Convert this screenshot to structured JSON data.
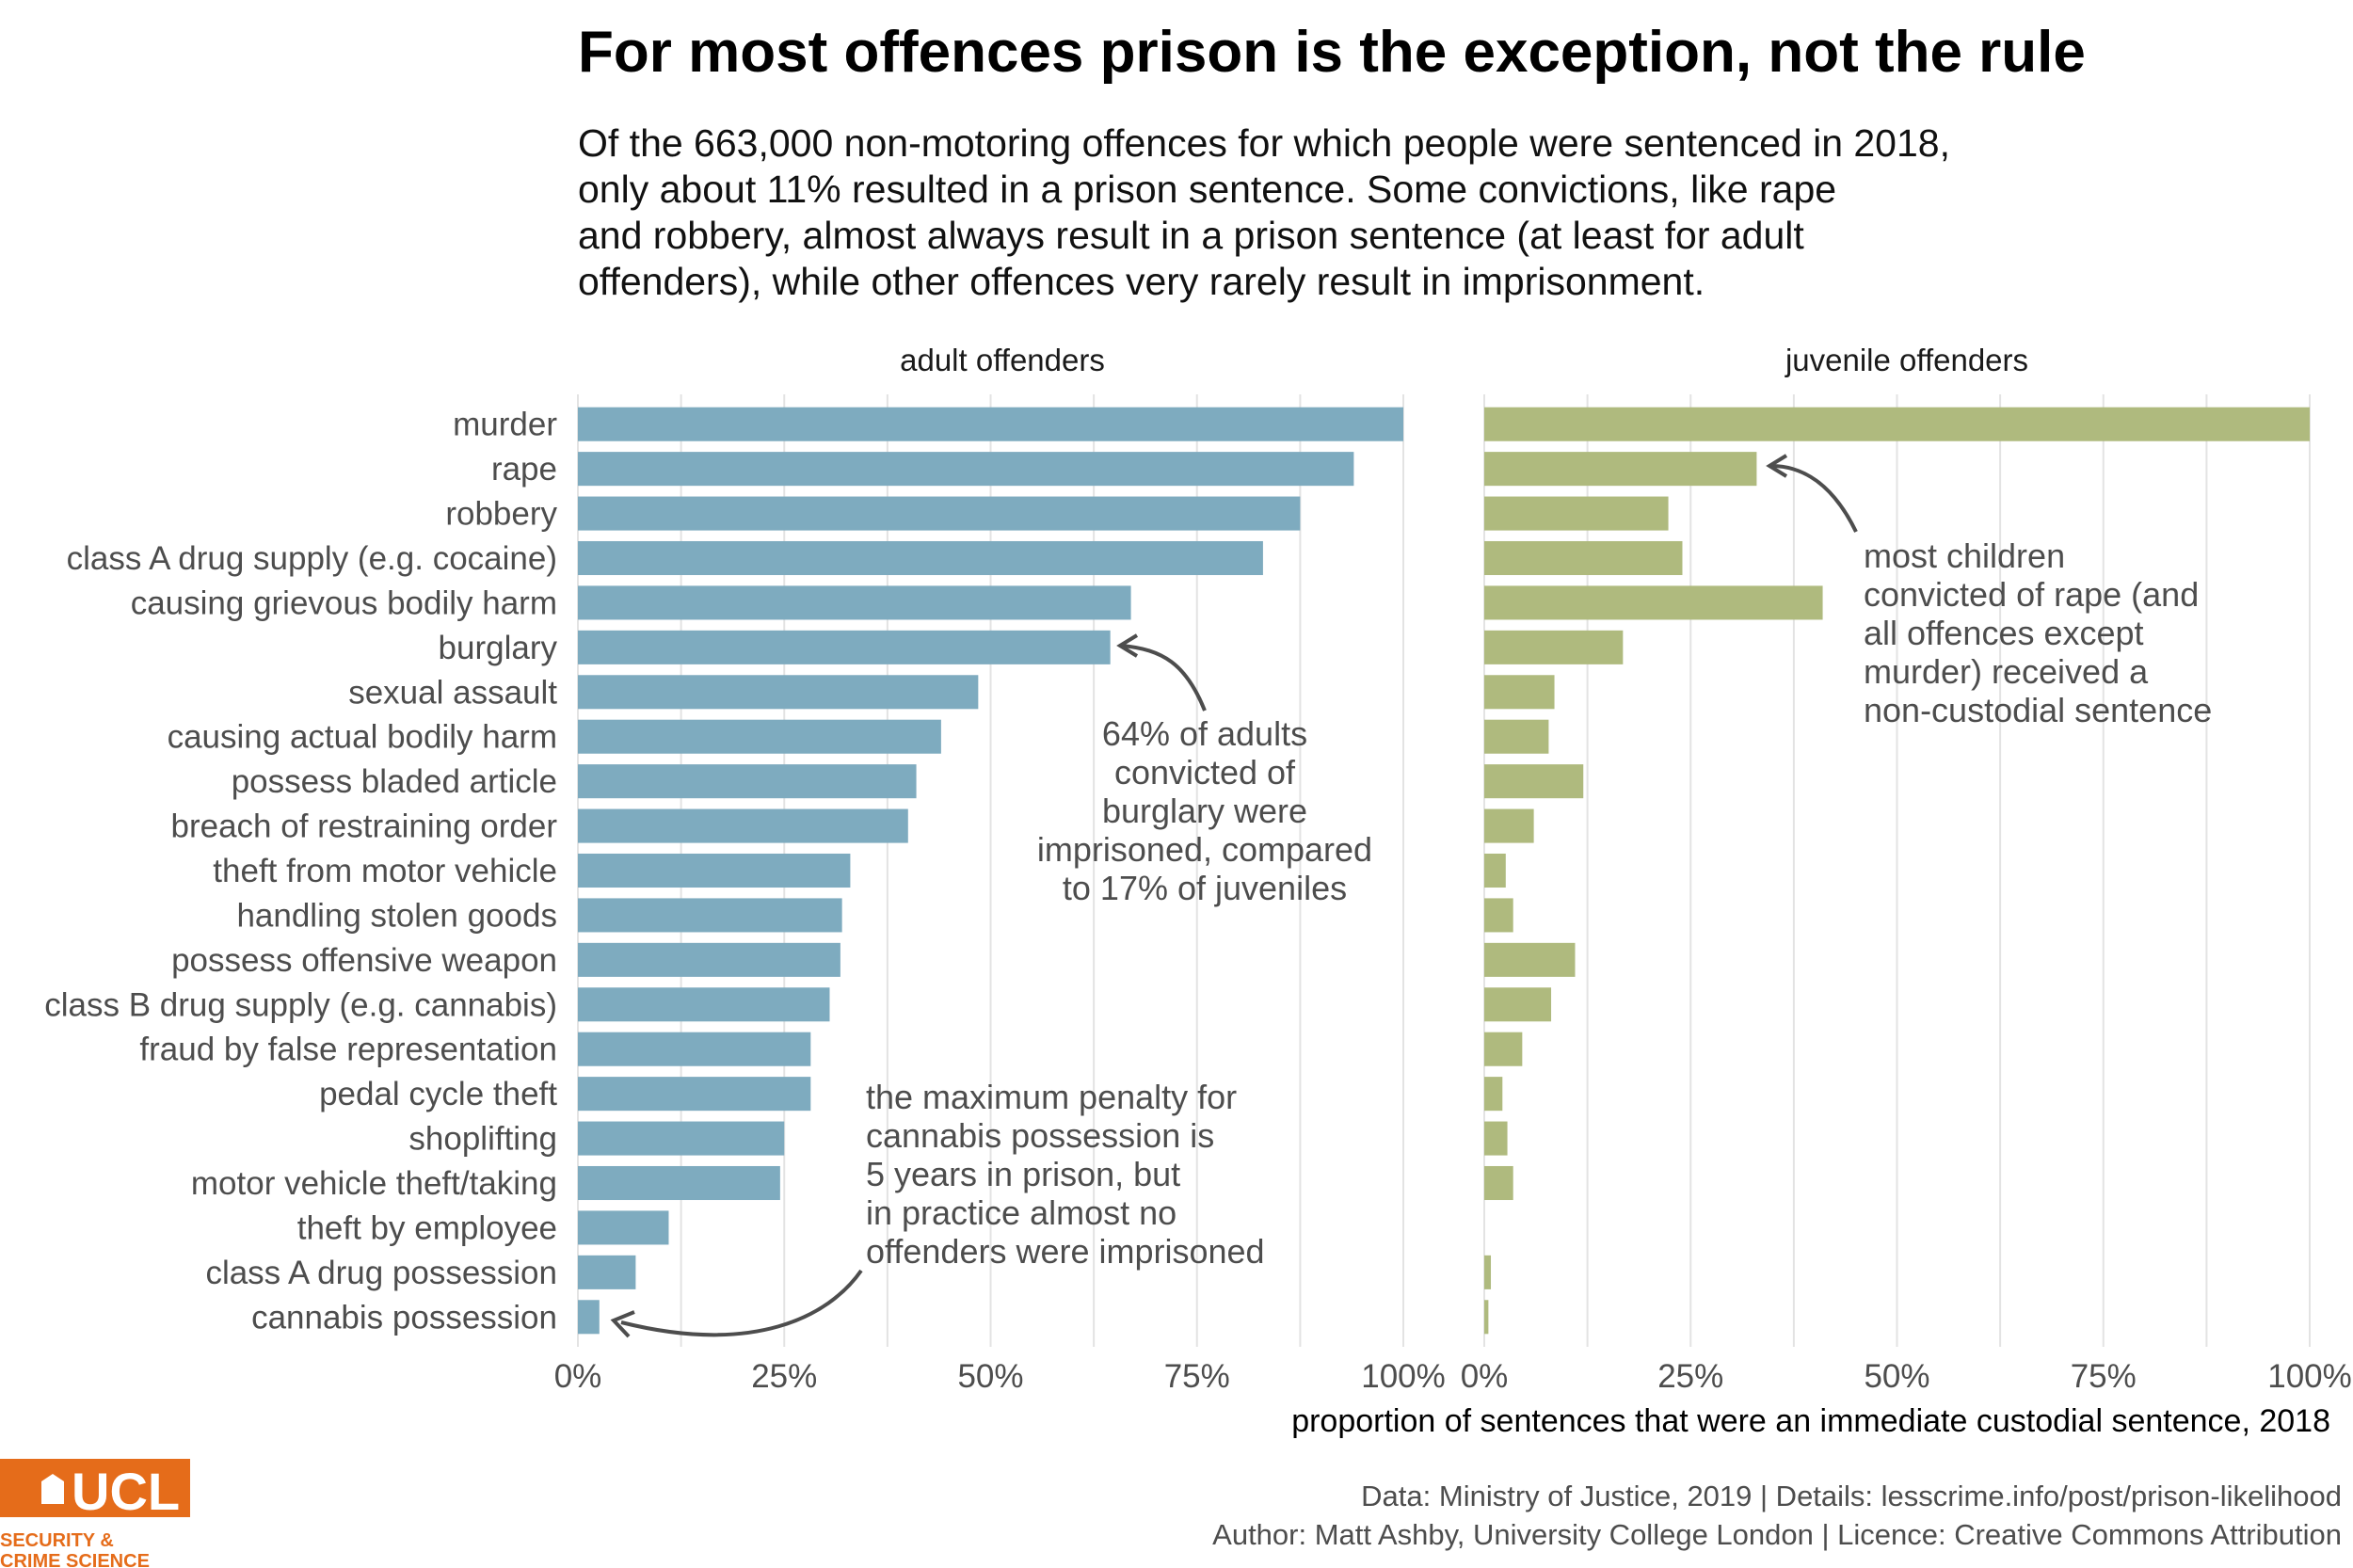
{
  "header": {
    "title": "For most offences prison is the exception, not the rule",
    "subtitle_lines": [
      "Of the 663,000 non-motoring offences for which people were sentenced in 2018,",
      "only about 11% resulted in a prison sentence. Some convictions, like rape",
      "and robbery, almost always result in a prison sentence (at least for adult",
      "offenders), while other offences very rarely result in imprisonment."
    ]
  },
  "chart_data": {
    "type": "bar",
    "orientation": "horizontal",
    "categories": [
      "murder",
      "rape",
      "robbery",
      "class A drug supply (e.g. cocaine)",
      "causing grievous bodily harm",
      "burglary",
      "sexual assault",
      "causing actual bodily harm",
      "possess bladed article",
      "breach of restraining order",
      "theft from motor vehicle",
      "handling stolen goods",
      "possess offensive weapon",
      "class B drug supply (e.g. cannabis)",
      "fraud by false representation",
      "pedal cycle theft",
      "shoplifting",
      "motor vehicle theft/taking",
      "theft by employee",
      "class A drug possession",
      "cannabis possession"
    ],
    "facets": [
      {
        "name": "adult offenders",
        "color": "#7eabbf",
        "values": [
          100,
          94,
          87.5,
          83,
          67,
          64.5,
          48.5,
          44,
          41,
          40,
          33,
          32,
          31.8,
          30.5,
          28.2,
          28.2,
          25,
          24.5,
          11,
          7,
          2.6
        ]
      },
      {
        "name": "juvenile offenders",
        "color": "#afba7e",
        "values": [
          100,
          33,
          22.3,
          24,
          41,
          16.8,
          8.5,
          7.8,
          12,
          6,
          2.6,
          3.5,
          11,
          8.1,
          4.6,
          2.2,
          2.8,
          3.5,
          null,
          0.8,
          0.5
        ]
      }
    ],
    "x_ticks": [
      "0%",
      "25%",
      "50%",
      "75%",
      "100%"
    ],
    "xlim": [
      0,
      100
    ],
    "xlabel": "proportion of sentences that were an immediate custodial sentence, 2018",
    "ylabel": "",
    "grid": true,
    "annotations": {
      "burglary": [
        "64% of adults",
        "convicted of",
        "burglary were",
        "imprisoned, compared",
        "to 17% of juveniles"
      ],
      "cannabis": [
        "the maximum penalty for",
        "cannabis possession is",
        "5 years in prison, but",
        "in practice almost no",
        "offenders were imprisoned"
      ],
      "juvenile_rape": [
        "most children",
        "convicted of rape (and",
        "all offences except",
        "murder) received a",
        "non-custodial sentence"
      ]
    }
  },
  "footer": {
    "source_line": "Data: Ministry of Justice, 2019 |  Details: lesscrime.info/post/prison-likelihood",
    "author_line": "Author: Matt Ashby, University College London |  Licence: Creative Commons Attribution"
  },
  "logo": {
    "wordmark": "UCL",
    "line1": "SECURITY &",
    "line2": "CRIME SCIENCE",
    "color": "#e56c1a"
  }
}
